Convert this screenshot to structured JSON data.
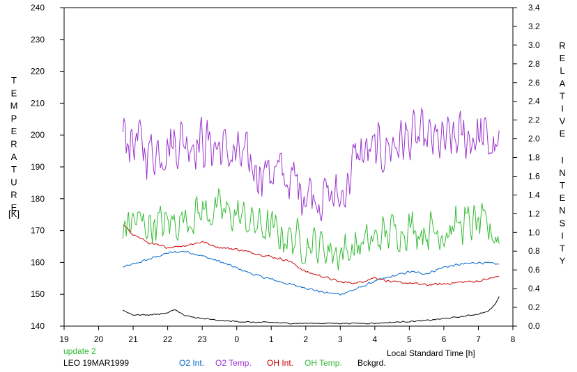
{
  "chart_data": {
    "type": "line",
    "xlabel": "Local Standard Time [h]",
    "ylabel_left": "TEMPERATURE",
    "ylabel_left_unit": "[K]",
    "ylabel_right": "RELATIVE INTENSITY",
    "xticks": [
      "19",
      "20",
      "21",
      "22",
      "23",
      "0",
      "1",
      "2",
      "3",
      "4",
      "5",
      "6",
      "7",
      "8"
    ],
    "xlim": [
      19,
      32
    ],
    "ylim_left": [
      140,
      240
    ],
    "yticks_left": [
      140,
      150,
      160,
      170,
      180,
      190,
      200,
      210,
      220,
      230,
      240
    ],
    "ylim_right": [
      0,
      3.4
    ],
    "yticks_right": [
      "0.0",
      "0.2",
      "0.4",
      "0.6",
      "0.8",
      "1.0",
      "1.2",
      "1.4",
      "1.6",
      "1.8",
      "2.0",
      "2.2",
      "2.4",
      "2.6",
      "2.8",
      "3.0",
      "3.2",
      "3.4"
    ],
    "status": "update 2",
    "station": "LEO 19MAR1999",
    "grid": false,
    "legend_position": "bottom",
    "series": [
      {
        "name": "O2 Int.",
        "axis": "right",
        "color": "#0066cc",
        "noise": 0.015,
        "x": [
          20.7,
          21.0,
          21.5,
          22.0,
          22.5,
          23.0,
          23.5,
          24.0,
          24.5,
          25.0,
          25.5,
          26.0,
          26.5,
          27.0,
          27.5,
          28.0,
          28.5,
          29.0,
          29.5,
          30.0,
          30.5,
          31.0,
          31.6
        ],
        "y": [
          0.63,
          0.66,
          0.72,
          0.78,
          0.8,
          0.75,
          0.69,
          0.62,
          0.55,
          0.5,
          0.45,
          0.41,
          0.36,
          0.34,
          0.4,
          0.48,
          0.53,
          0.58,
          0.56,
          0.63,
          0.66,
          0.68,
          0.66
        ]
      },
      {
        "name": "O2 Temp.",
        "axis": "left",
        "color": "#9933cc",
        "noise": 7.5,
        "x": [
          20.7,
          21.0,
          21.5,
          22.0,
          22.5,
          23.0,
          23.5,
          24.0,
          24.5,
          25.0,
          25.5,
          26.0,
          26.5,
          27.0,
          27.5,
          28.0,
          28.5,
          29.0,
          29.5,
          30.0,
          30.5,
          31.0,
          31.6
        ],
        "y": [
          201,
          198,
          195,
          197,
          199,
          198,
          196,
          193,
          190,
          189,
          186,
          183,
          181,
          180,
          194,
          194,
          197,
          199,
          198,
          197,
          199,
          200,
          195
        ]
      },
      {
        "name": "OH Int.",
        "axis": "right",
        "color": "#cc0000",
        "noise": 0.015,
        "x": [
          20.7,
          21.0,
          21.5,
          22.0,
          22.5,
          23.0,
          23.5,
          24.0,
          24.5,
          25.0,
          25.5,
          26.0,
          26.5,
          27.0,
          27.5,
          28.0,
          28.5,
          29.0,
          29.5,
          30.0,
          30.5,
          31.0,
          31.6
        ],
        "y": [
          1.08,
          0.98,
          0.88,
          0.84,
          0.86,
          0.9,
          0.84,
          0.82,
          0.78,
          0.74,
          0.7,
          0.58,
          0.53,
          0.47,
          0.46,
          0.52,
          0.47,
          0.46,
          0.44,
          0.45,
          0.47,
          0.48,
          0.53
        ]
      },
      {
        "name": "OH Temp.",
        "axis": "left",
        "color": "#33bb33",
        "noise": 5.5,
        "x": [
          20.7,
          21.0,
          21.5,
          22.0,
          22.5,
          23.0,
          23.5,
          24.0,
          24.5,
          25.0,
          25.5,
          26.0,
          26.5,
          27.0,
          27.5,
          28.0,
          28.5,
          29.0,
          29.5,
          30.0,
          30.5,
          31.0,
          31.6
        ],
        "y": [
          171,
          173,
          172,
          172,
          174,
          176,
          176,
          175,
          172,
          170,
          168,
          166,
          165,
          163,
          165,
          167,
          170,
          171,
          170,
          170,
          172,
          172,
          168
        ]
      },
      {
        "name": "Bckgrd.",
        "axis": "right",
        "color": "#000000",
        "noise": 0.008,
        "x": [
          20.7,
          21.0,
          21.5,
          22.0,
          22.2,
          22.5,
          23.0,
          23.5,
          24.0,
          24.5,
          25.0,
          25.5,
          26.0,
          26.5,
          27.0,
          27.5,
          28.0,
          28.5,
          29.0,
          29.5,
          30.0,
          30.5,
          31.0,
          31.3,
          31.5,
          31.6
        ],
        "y": [
          0.17,
          0.12,
          0.12,
          0.14,
          0.18,
          0.11,
          0.08,
          0.06,
          0.05,
          0.04,
          0.04,
          0.03,
          0.03,
          0.03,
          0.03,
          0.03,
          0.03,
          0.04,
          0.05,
          0.06,
          0.08,
          0.1,
          0.13,
          0.16,
          0.24,
          0.32
        ]
      }
    ]
  }
}
